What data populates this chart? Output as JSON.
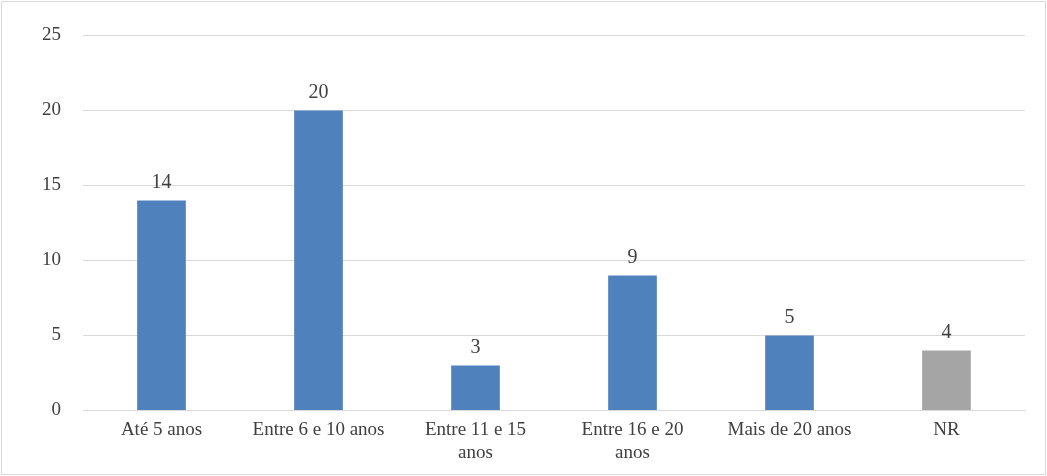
{
  "chart_data": {
    "type": "bar",
    "categories": [
      "Até 5 anos",
      "Entre 6 e 10 anos",
      "Entre 11 e 15 anos",
      "Entre 16 e 20 anos",
      "Mais de 20 anos",
      "NR"
    ],
    "values": [
      14,
      20,
      3,
      9,
      5,
      4
    ],
    "colors": [
      "#4f81bd",
      "#4f81bd",
      "#4f81bd",
      "#4f81bd",
      "#4f81bd",
      "#a5a5a5"
    ],
    "ylim": [
      0,
      25
    ],
    "yticks": [
      0,
      5,
      10,
      15,
      20,
      25
    ],
    "grid": "y",
    "legend": false,
    "data_labels": true
  }
}
